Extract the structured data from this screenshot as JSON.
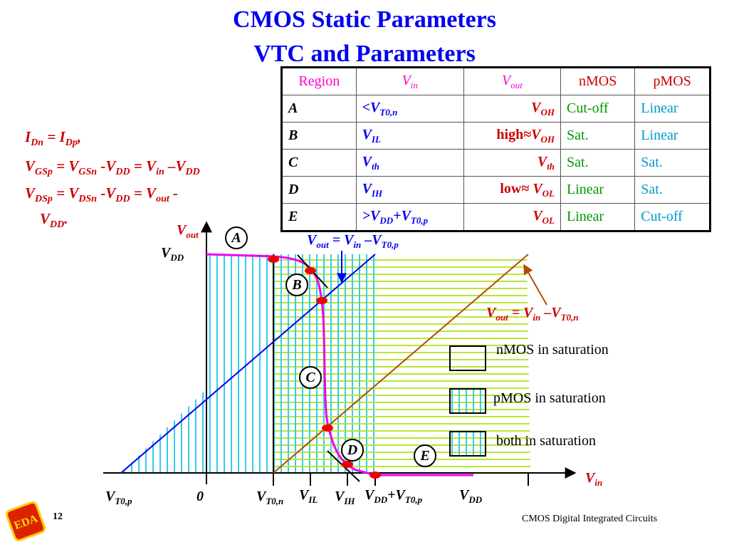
{
  "title": {
    "line1": "CMOS Static Parameters",
    "line2": "VTC and Parameters"
  },
  "equations": [
    {
      "text": "I_Dn = I_Dp,"
    },
    {
      "text": "V_GSp = V_GSn -V_DD = V_in –V_DD"
    },
    {
      "text": "V_DSp = V_DSn -V_DD = V_out - V_DD."
    }
  ],
  "table": {
    "headers": [
      "Region",
      "V_in",
      "V_out",
      "nMOS",
      "pMOS"
    ],
    "rows": [
      {
        "region": "A",
        "vin": "<V_T0,n",
        "vout": "V_OH",
        "nmos": "Cut-off",
        "pmos": "Linear"
      },
      {
        "region": "B",
        "vin": "V_IL",
        "vout": "high≈V_OH",
        "nmos": "Sat.",
        "pmos": "Linear"
      },
      {
        "region": "C",
        "vin": "V_th",
        "vout": "V_th",
        "nmos": "Sat.",
        "pmos": "Sat."
      },
      {
        "region": "D",
        "vin": "V_IH",
        "vout": "low≈ V_OL",
        "nmos": "Linear",
        "pmos": "Sat."
      },
      {
        "region": "E",
        "vin": ">V_DD+V_T0,p",
        "vout": "V_OL",
        "nmos": "Linear",
        "pmos": "Cut-off"
      }
    ]
  },
  "plot": {
    "y_axis_label": "V_out",
    "x_axis_label": "V_in",
    "vdd_label": "V_DD",
    "x_ticks": [
      "V_T0,p",
      "0",
      "V_T0,n",
      "V_IL",
      "V_IH",
      "V_DD+V_T0,p",
      "V_DD"
    ],
    "region_labels": [
      "A",
      "B",
      "C",
      "D",
      "E"
    ],
    "line_labels": {
      "pmos_line": "V_out = V_in –V_T0,p",
      "nmos_line": "V_out = V_in –V_T0,n"
    },
    "legend": [
      {
        "key": "nmos-sat",
        "text": "nMOS in saturation"
      },
      {
        "key": "pmos-sat",
        "text": "pMOS in saturation"
      },
      {
        "key": "both-sat",
        "text": "both in saturation"
      }
    ],
    "colors": {
      "nmos_hatch": "#b8e632",
      "pmos_hatch": "#33ccee",
      "vtc_curve": "#ee00ee",
      "points": "#ee0000",
      "pmos_line": "#0000ee",
      "nmos_line": "#b34d00"
    }
  },
  "footer": {
    "page": "12",
    "course": "CMOS Digital Integrated Circuits"
  },
  "logo": {
    "text": "EDA"
  }
}
